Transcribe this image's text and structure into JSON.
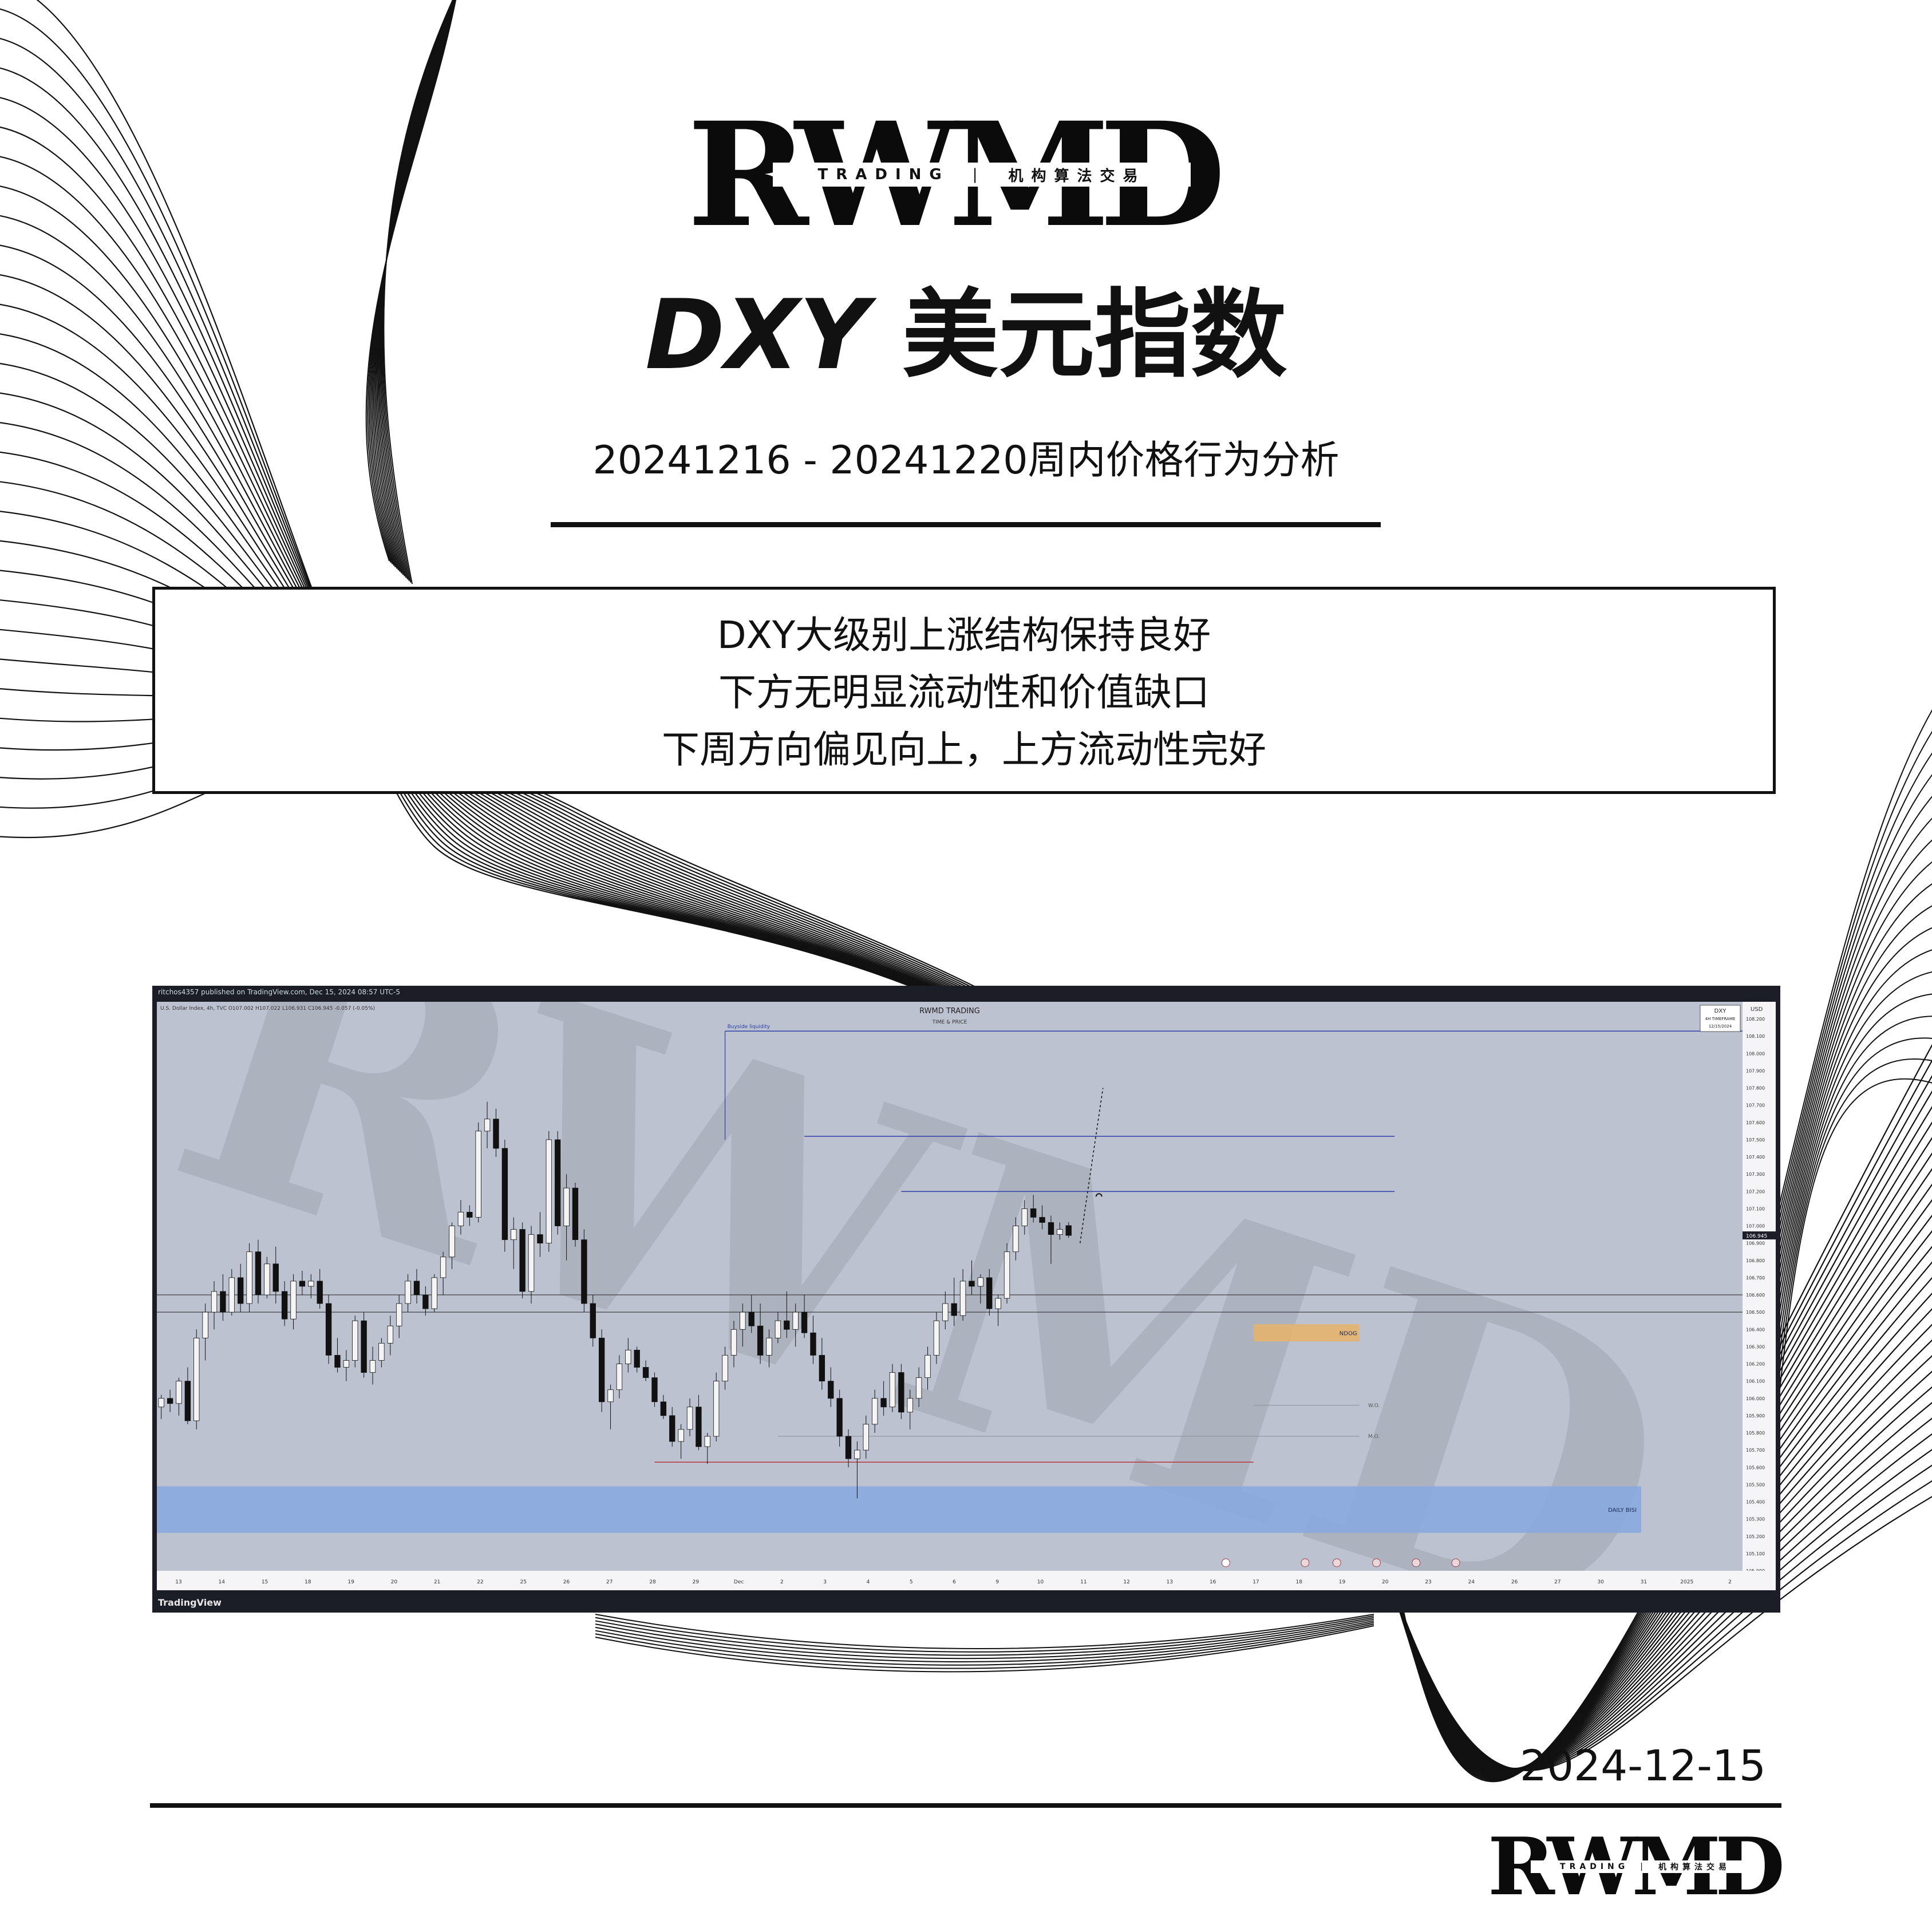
{
  "brand": {
    "logo_letters": "RWMD",
    "logo_left": "TRADING",
    "logo_sep": "|",
    "logo_right": "机构算法交易"
  },
  "header": {
    "title_latin": "DXY",
    "title_cn": "美元指数",
    "subtitle": "20241216 - 20241220周内价格行为分析"
  },
  "summary": {
    "lines": [
      "DXY大级别上涨结构保持良好",
      "下方无明显流动性和价值缺口",
      "下周方向偏见向上，上方流动性完好"
    ]
  },
  "footer": {
    "date": "2024-12-15"
  },
  "chart_data": {
    "type": "candlestick",
    "publisher_line": "ritchos4357 published on TradingView.com, Dec 15, 2024 08:57 UTC-5",
    "symbol_line": "U.S. Dollar Index, 4h, TVC  O107.002  H107.022  L106.931  C106.945  -0.057 (-0.05%)",
    "title": "RWMD TRADING",
    "subtitle": "TIME & PRICE",
    "badge": [
      "DXY",
      "4H TIMEFRAME",
      "12/15/2024"
    ],
    "currency": "USD",
    "platform": "TradingView",
    "ylim": [
      105.0,
      108.3
    ],
    "y_ticks": [
      105.0,
      105.1,
      105.2,
      105.3,
      105.4,
      105.5,
      105.6,
      105.7,
      105.8,
      105.9,
      106.0,
      106.1,
      106.2,
      106.3,
      106.4,
      106.5,
      106.6,
      106.7,
      106.8,
      106.9,
      107.0,
      107.1,
      107.2,
      107.3,
      107.4,
      107.5,
      107.6,
      107.7,
      107.8,
      107.9,
      108.0,
      108.1,
      108.2
    ],
    "x_ticks": [
      "13",
      "14",
      "15",
      "18",
      "19",
      "20",
      "21",
      "22",
      "25",
      "26",
      "27",
      "28",
      "29",
      "Dec",
      "2",
      "3",
      "4",
      "5",
      "6",
      "9",
      "10",
      "11",
      "12",
      "13",
      "16",
      "17",
      "18",
      "19",
      "20",
      "23",
      "24",
      "26",
      "27",
      "30",
      "31",
      "2025",
      "2"
    ],
    "last_price": 106.945,
    "grid": false,
    "colors": {
      "background": "#bcc2cf",
      "candle_up": "#f4f4f4",
      "candle_down": "#111111",
      "level": "#2e3fa8",
      "daily_fvg": "#86a8e0",
      "order_block": "#e8b168",
      "ssl": "#b5343a"
    },
    "levels": [
      {
        "name": "Buyside liquidity",
        "price": 108.13
      },
      {
        "name": "",
        "price": 107.52
      },
      {
        "name": "",
        "price": 107.2
      },
      {
        "name": "",
        "price": 106.6
      },
      {
        "name": "",
        "price": 106.5
      }
    ],
    "annotations": [
      "Buyside liquidity",
      "NDOG",
      "W.O.",
      "M.O.",
      "DAILY BISI"
    ],
    "zones": [
      {
        "name": "DAILY BISI",
        "low": 105.22,
        "high": 105.49
      },
      {
        "name": "NDOG",
        "low": 106.33,
        "high": 106.43
      }
    ],
    "candles": [
      [
        105.95,
        106.02,
        105.88,
        106.0
      ],
      [
        106.0,
        106.05,
        105.92,
        105.97
      ],
      [
        105.97,
        106.12,
        105.9,
        106.1
      ],
      [
        106.1,
        106.18,
        105.85,
        105.87
      ],
      [
        105.87,
        106.4,
        105.82,
        106.35
      ],
      [
        106.35,
        106.55,
        106.22,
        106.5
      ],
      [
        106.5,
        106.68,
        106.4,
        106.62
      ],
      [
        106.62,
        106.72,
        106.45,
        106.5
      ],
      [
        106.5,
        106.75,
        106.48,
        106.7
      ],
      [
        106.7,
        106.78,
        106.5,
        106.55
      ],
      [
        106.55,
        106.9,
        106.5,
        106.85
      ],
      [
        106.85,
        106.92,
        106.55,
        106.6
      ],
      [
        106.6,
        106.82,
        106.58,
        106.78
      ],
      [
        106.78,
        106.88,
        106.55,
        106.62
      ],
      [
        106.62,
        106.68,
        106.42,
        106.46
      ],
      [
        106.46,
        106.72,
        106.4,
        106.68
      ],
      [
        106.68,
        106.74,
        106.6,
        106.65
      ],
      [
        106.65,
        106.72,
        106.58,
        106.68
      ],
      [
        106.68,
        106.75,
        106.52,
        106.55
      ],
      [
        106.55,
        106.6,
        106.2,
        106.25
      ],
      [
        106.25,
        106.35,
        106.15,
        106.18
      ],
      [
        106.18,
        106.28,
        106.1,
        106.22
      ],
      [
        106.22,
        106.48,
        106.18,
        106.45
      ],
      [
        106.45,
        106.5,
        106.12,
        106.15
      ],
      [
        106.15,
        106.3,
        106.08,
        106.22
      ],
      [
        106.22,
        106.35,
        106.18,
        106.32
      ],
      [
        106.32,
        106.48,
        106.25,
        106.42
      ],
      [
        106.42,
        106.6,
        106.35,
        106.55
      ],
      [
        106.55,
        106.72,
        106.5,
        106.68
      ],
      [
        106.68,
        106.75,
        106.55,
        106.6
      ],
      [
        106.6,
        106.65,
        106.48,
        106.52
      ],
      [
        106.52,
        106.72,
        106.5,
        106.7
      ],
      [
        106.7,
        106.85,
        106.6,
        106.82
      ],
      [
        106.82,
        107.02,
        106.75,
        107.0
      ],
      [
        107.0,
        107.15,
        106.95,
        107.08
      ],
      [
        107.08,
        107.12,
        107.0,
        107.05
      ],
      [
        107.05,
        107.6,
        107.02,
        107.55
      ],
      [
        107.55,
        107.72,
        107.45,
        107.62
      ],
      [
        107.62,
        107.68,
        107.4,
        107.45
      ],
      [
        107.45,
        107.5,
        106.85,
        106.92
      ],
      [
        106.92,
        107.05,
        106.75,
        106.98
      ],
      [
        106.98,
        107.02,
        106.58,
        106.62
      ],
      [
        106.62,
        107.0,
        106.55,
        106.95
      ],
      [
        106.95,
        107.08,
        106.82,
        106.9
      ],
      [
        106.9,
        107.55,
        106.85,
        107.5
      ],
      [
        107.5,
        107.55,
        106.95,
        107.0
      ],
      [
        107.0,
        107.3,
        106.8,
        107.22
      ],
      [
        107.22,
        107.25,
        106.88,
        106.92
      ],
      [
        106.92,
        106.98,
        106.5,
        106.55
      ],
      [
        106.55,
        106.6,
        106.3,
        106.35
      ],
      [
        106.35,
        106.4,
        105.92,
        105.98
      ],
      [
        105.98,
        106.08,
        105.82,
        106.05
      ],
      [
        106.05,
        106.25,
        106.0,
        106.2
      ],
      [
        106.2,
        106.35,
        106.15,
        106.28
      ],
      [
        106.28,
        106.3,
        106.15,
        106.18
      ],
      [
        106.18,
        106.22,
        106.1,
        106.12
      ],
      [
        106.12,
        106.15,
        105.95,
        105.98
      ],
      [
        105.98,
        106.02,
        105.88,
        105.9
      ],
      [
        105.9,
        105.95,
        105.72,
        105.75
      ],
      [
        105.75,
        105.85,
        105.65,
        105.82
      ],
      [
        105.82,
        106.0,
        105.78,
        105.95
      ],
      [
        105.95,
        106.02,
        105.7,
        105.72
      ],
      [
        105.72,
        105.8,
        105.62,
        105.78
      ],
      [
        105.78,
        106.15,
        105.75,
        106.1
      ],
      [
        106.1,
        106.3,
        106.05,
        106.25
      ],
      [
        106.25,
        106.45,
        106.18,
        106.4
      ],
      [
        106.4,
        106.55,
        106.3,
        106.5
      ],
      [
        106.5,
        106.6,
        106.38,
        106.42
      ],
      [
        106.42,
        106.55,
        106.2,
        106.25
      ],
      [
        106.25,
        106.4,
        106.18,
        106.35
      ],
      [
        106.35,
        106.5,
        106.32,
        106.45
      ],
      [
        106.45,
        106.62,
        106.35,
        106.4
      ],
      [
        106.4,
        106.55,
        106.3,
        106.5
      ],
      [
        106.5,
        106.6,
        106.35,
        106.38
      ],
      [
        106.38,
        106.48,
        106.2,
        106.25
      ],
      [
        106.25,
        106.35,
        106.05,
        106.1
      ],
      [
        106.1,
        106.18,
        105.95,
        106.0
      ],
      [
        106.0,
        106.05,
        105.72,
        105.78
      ],
      [
        105.78,
        105.82,
        105.6,
        105.65
      ],
      [
        105.65,
        105.75,
        105.42,
        105.7
      ],
      [
        105.7,
        105.9,
        105.65,
        105.85
      ],
      [
        105.85,
        106.05,
        105.8,
        106.0
      ],
      [
        106.0,
        106.1,
        105.9,
        105.95
      ],
      [
        105.95,
        106.2,
        105.92,
        106.15
      ],
      [
        106.15,
        106.2,
        105.88,
        105.92
      ],
      [
        105.92,
        106.05,
        105.82,
        106.0
      ],
      [
        106.0,
        106.18,
        105.95,
        106.12
      ],
      [
        106.12,
        106.3,
        106.05,
        106.25
      ],
      [
        106.25,
        106.5,
        106.2,
        106.45
      ],
      [
        106.45,
        106.62,
        106.4,
        106.55
      ],
      [
        106.55,
        106.7,
        106.42,
        106.48
      ],
      [
        106.48,
        106.75,
        106.45,
        106.68
      ],
      [
        106.68,
        106.8,
        106.6,
        106.65
      ],
      [
        106.65,
        106.72,
        106.55,
        106.7
      ],
      [
        106.7,
        106.75,
        106.48,
        106.52
      ],
      [
        106.52,
        106.6,
        106.42,
        106.58
      ],
      [
        106.58,
        106.9,
        106.55,
        106.85
      ],
      [
        106.85,
        107.05,
        106.8,
        107.0
      ],
      [
        107.0,
        107.15,
        106.95,
        107.1
      ],
      [
        107.1,
        107.18,
        107.02,
        107.05
      ],
      [
        107.05,
        107.12,
        106.98,
        107.02
      ],
      [
        107.02,
        107.06,
        106.78,
        106.95
      ],
      [
        106.95,
        107.02,
        106.92,
        106.98
      ],
      [
        107.002,
        107.022,
        106.931,
        106.945
      ]
    ]
  }
}
